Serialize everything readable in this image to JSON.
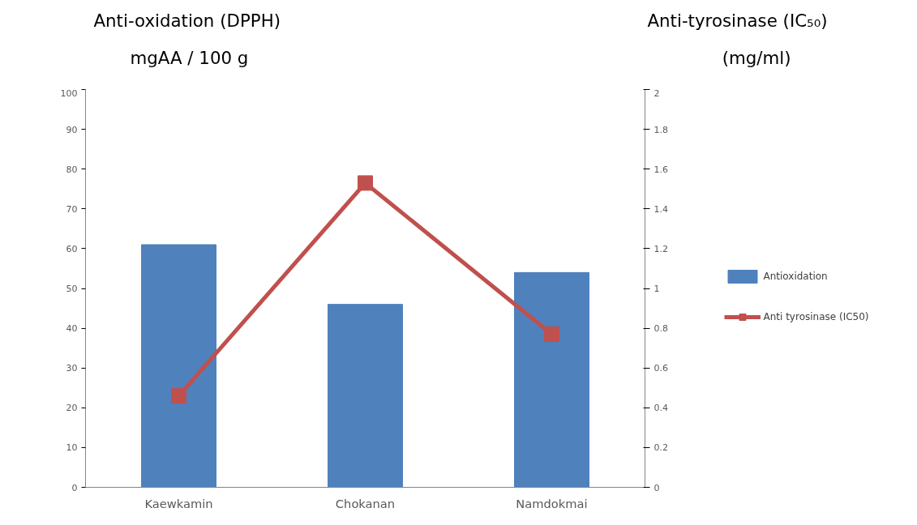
{
  "chart_data": {
    "type": "bar",
    "ylabel": "Anti-oxidation (DPPH)\nmgAA / 100 g",
    "y2label": "Anti-tyrosinase (IC₅₀)\n(mg/ml)",
    "categories": [
      "Kaewkamin",
      "Chokanan",
      "Namdokmai"
    ],
    "series": [
      {
        "name": "Antioxidation",
        "type": "bar",
        "color": "#4f81bd",
        "values": [
          61,
          46,
          54
        ]
      },
      {
        "name": "Anti tyrosinase (IC50)",
        "type": "line",
        "axis": "y2",
        "color": "#c0504d",
        "marker": "square",
        "values": [
          0.46,
          1.53,
          0.77
        ]
      }
    ],
    "ylim": [
      0,
      100
    ],
    "yticks": [
      0,
      10,
      20,
      30,
      40,
      50,
      60,
      70,
      80,
      90,
      100
    ],
    "y2lim": [
      0,
      2
    ],
    "y2ticks": [
      0,
      {
        "value": 0.2,
        "label": "0.2"
      },
      {
        "value": 0.4,
        "label": "0.4"
      },
      {
        "value": 0.6,
        "label": "0.6"
      },
      {
        "value": 0.8,
        "label": "0.8"
      },
      1,
      {
        "value": 1.2,
        "label": "1.2"
      },
      {
        "value": 1.4,
        "label": "1.4"
      },
      {
        "value": 1.6,
        "label": "1.6"
      },
      {
        "value": 1.8,
        "label": "1.8"
      },
      2
    ],
    "grid": false,
    "legend": "right"
  }
}
